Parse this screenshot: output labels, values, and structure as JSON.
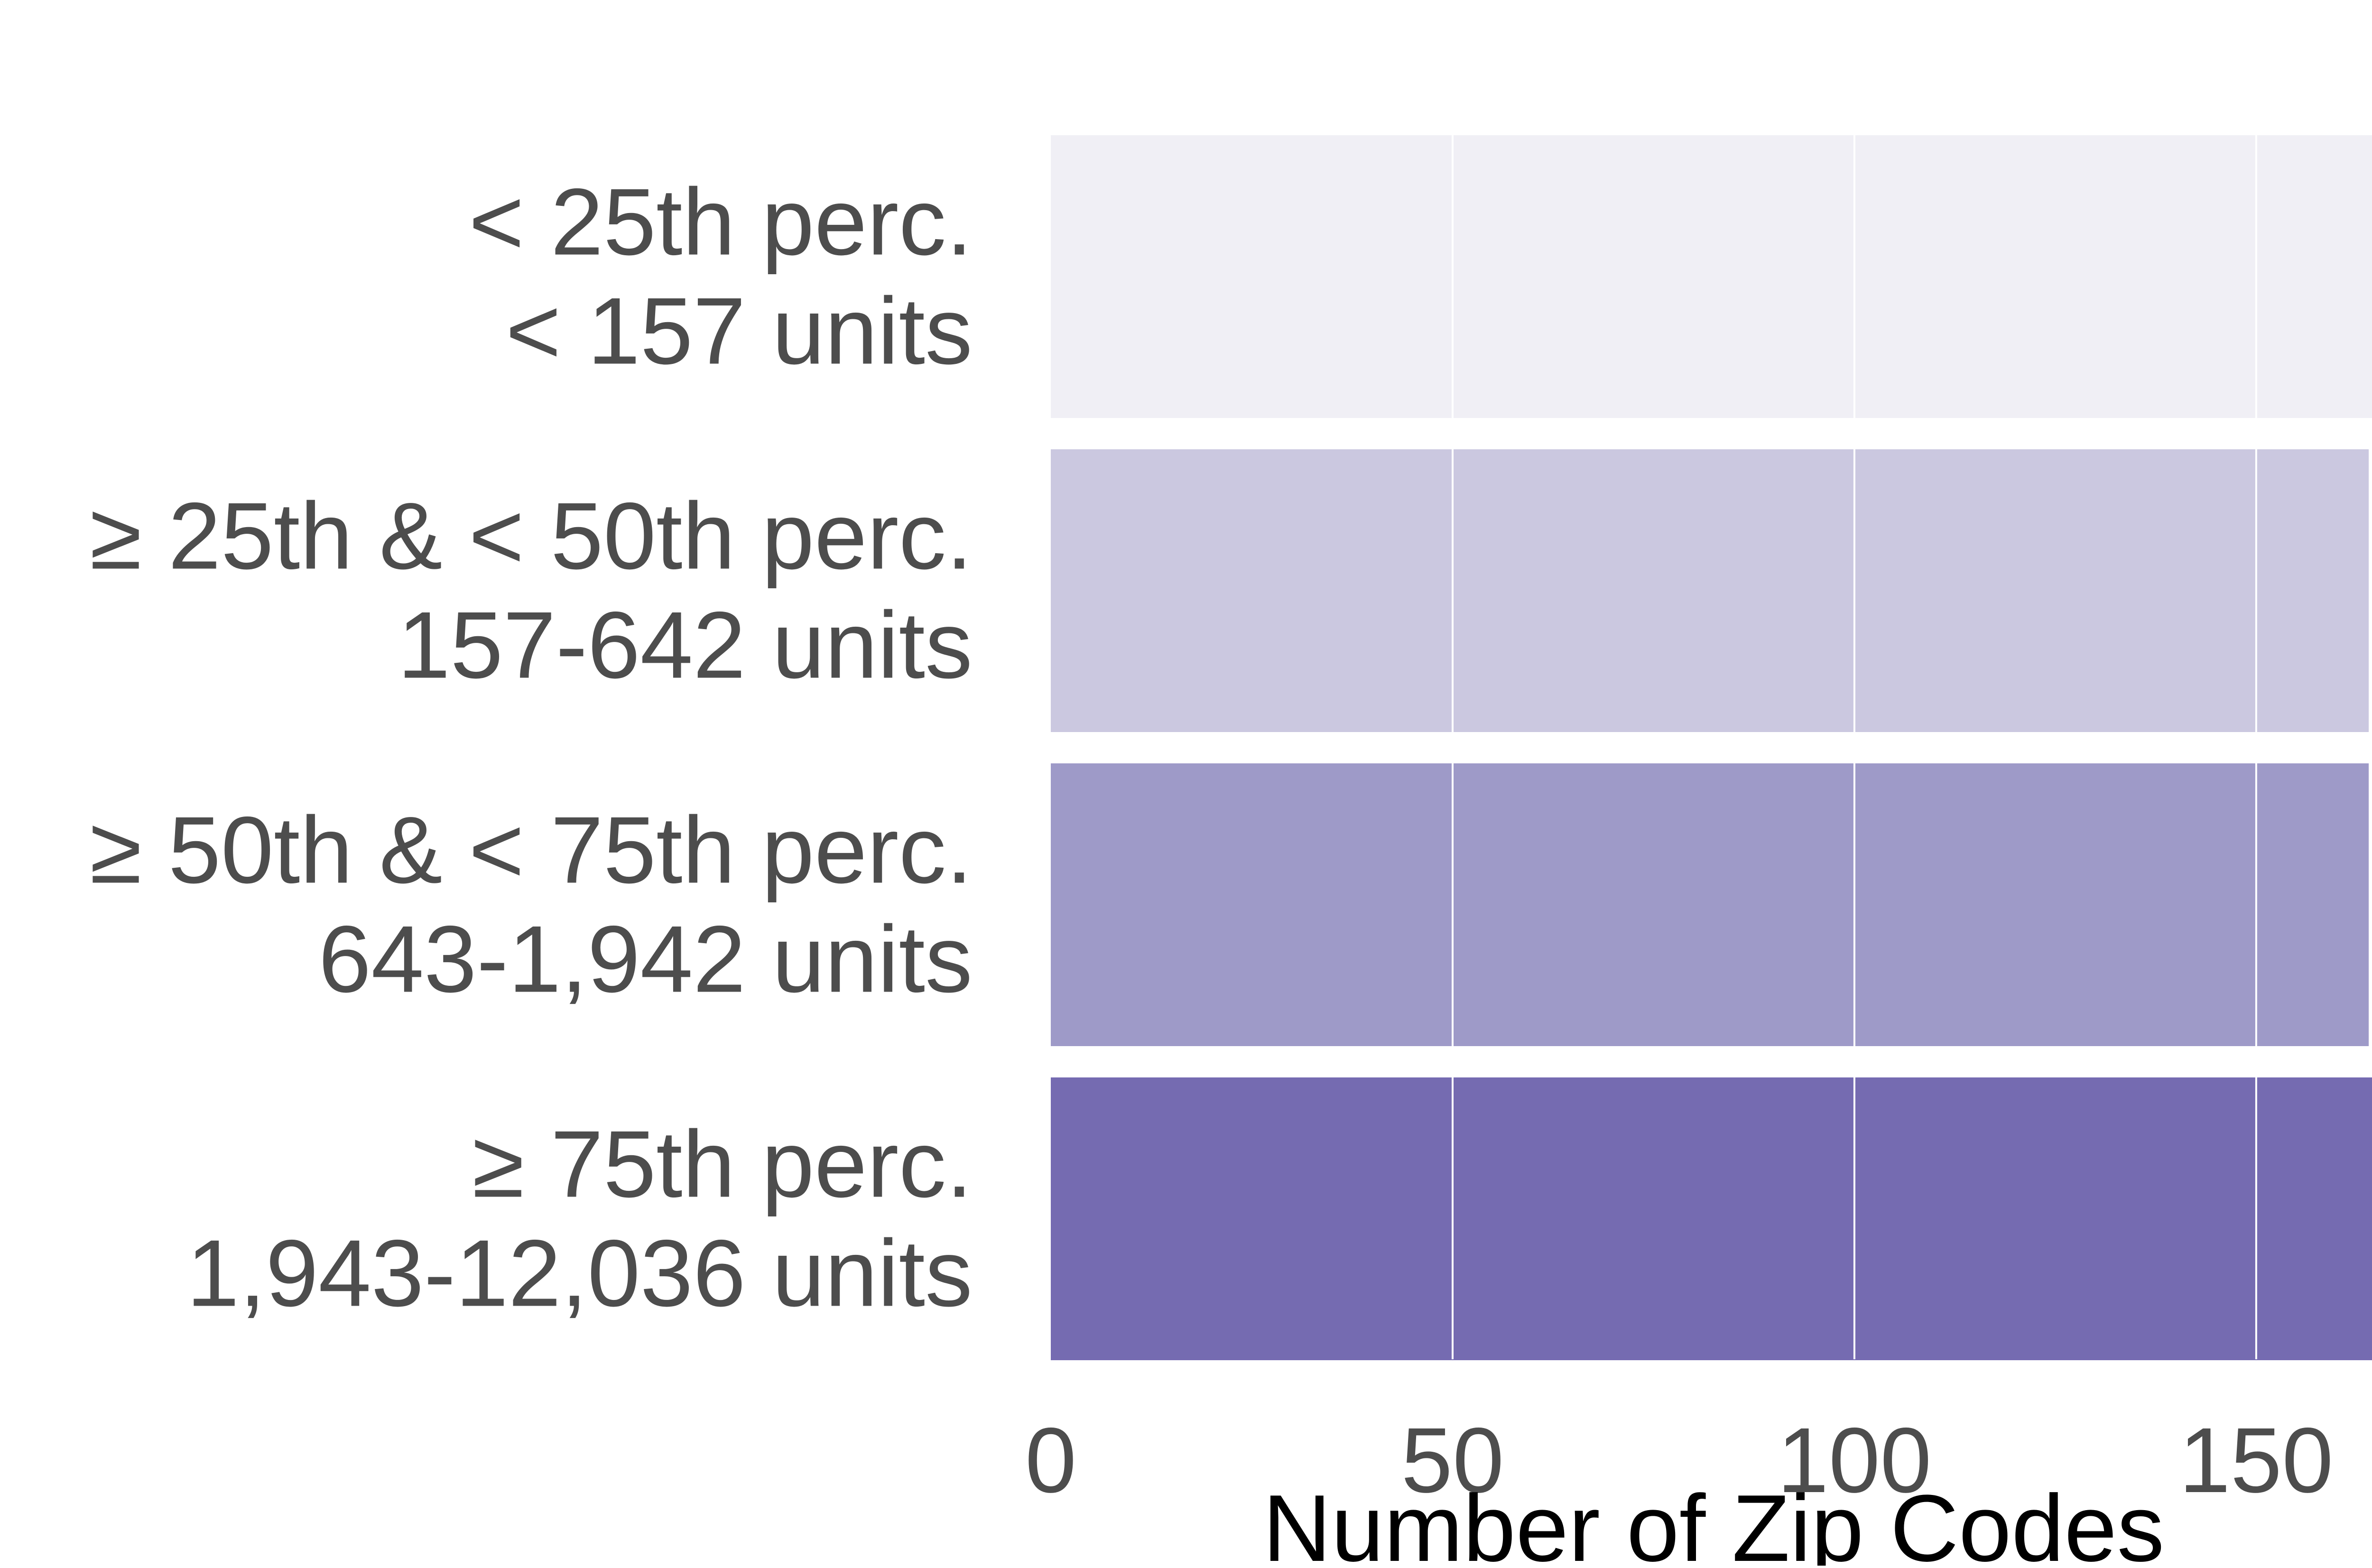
{
  "chart_data": {
    "type": "bar",
    "orientation": "horizontal",
    "categories": [
      [
        "< 25th perc.",
        "< 157 units"
      ],
      [
        "≥ 25th & < 50th perc.",
        "157-642 units"
      ],
      [
        "≥ 50th & < 75th perc.",
        "643-1,942 units"
      ],
      [
        "≥ 75th perc.",
        "1,943-12,036 units"
      ]
    ],
    "values": [
      165,
      164,
      164,
      165
    ],
    "colors": [
      "#f0eff5",
      "#cbc8e0",
      "#9e9ac8",
      "#756bb1"
    ],
    "title": "",
    "xlabel": "Number of Zip Codes",
    "ylabel": "",
    "xlim": [
      0,
      165
    ],
    "xticks": [
      0,
      50,
      100,
      150
    ],
    "grid": true,
    "grid_color": "#ffffff",
    "tick_label_color": "#4d4d4d",
    "axis_label_color": "#000000"
  }
}
